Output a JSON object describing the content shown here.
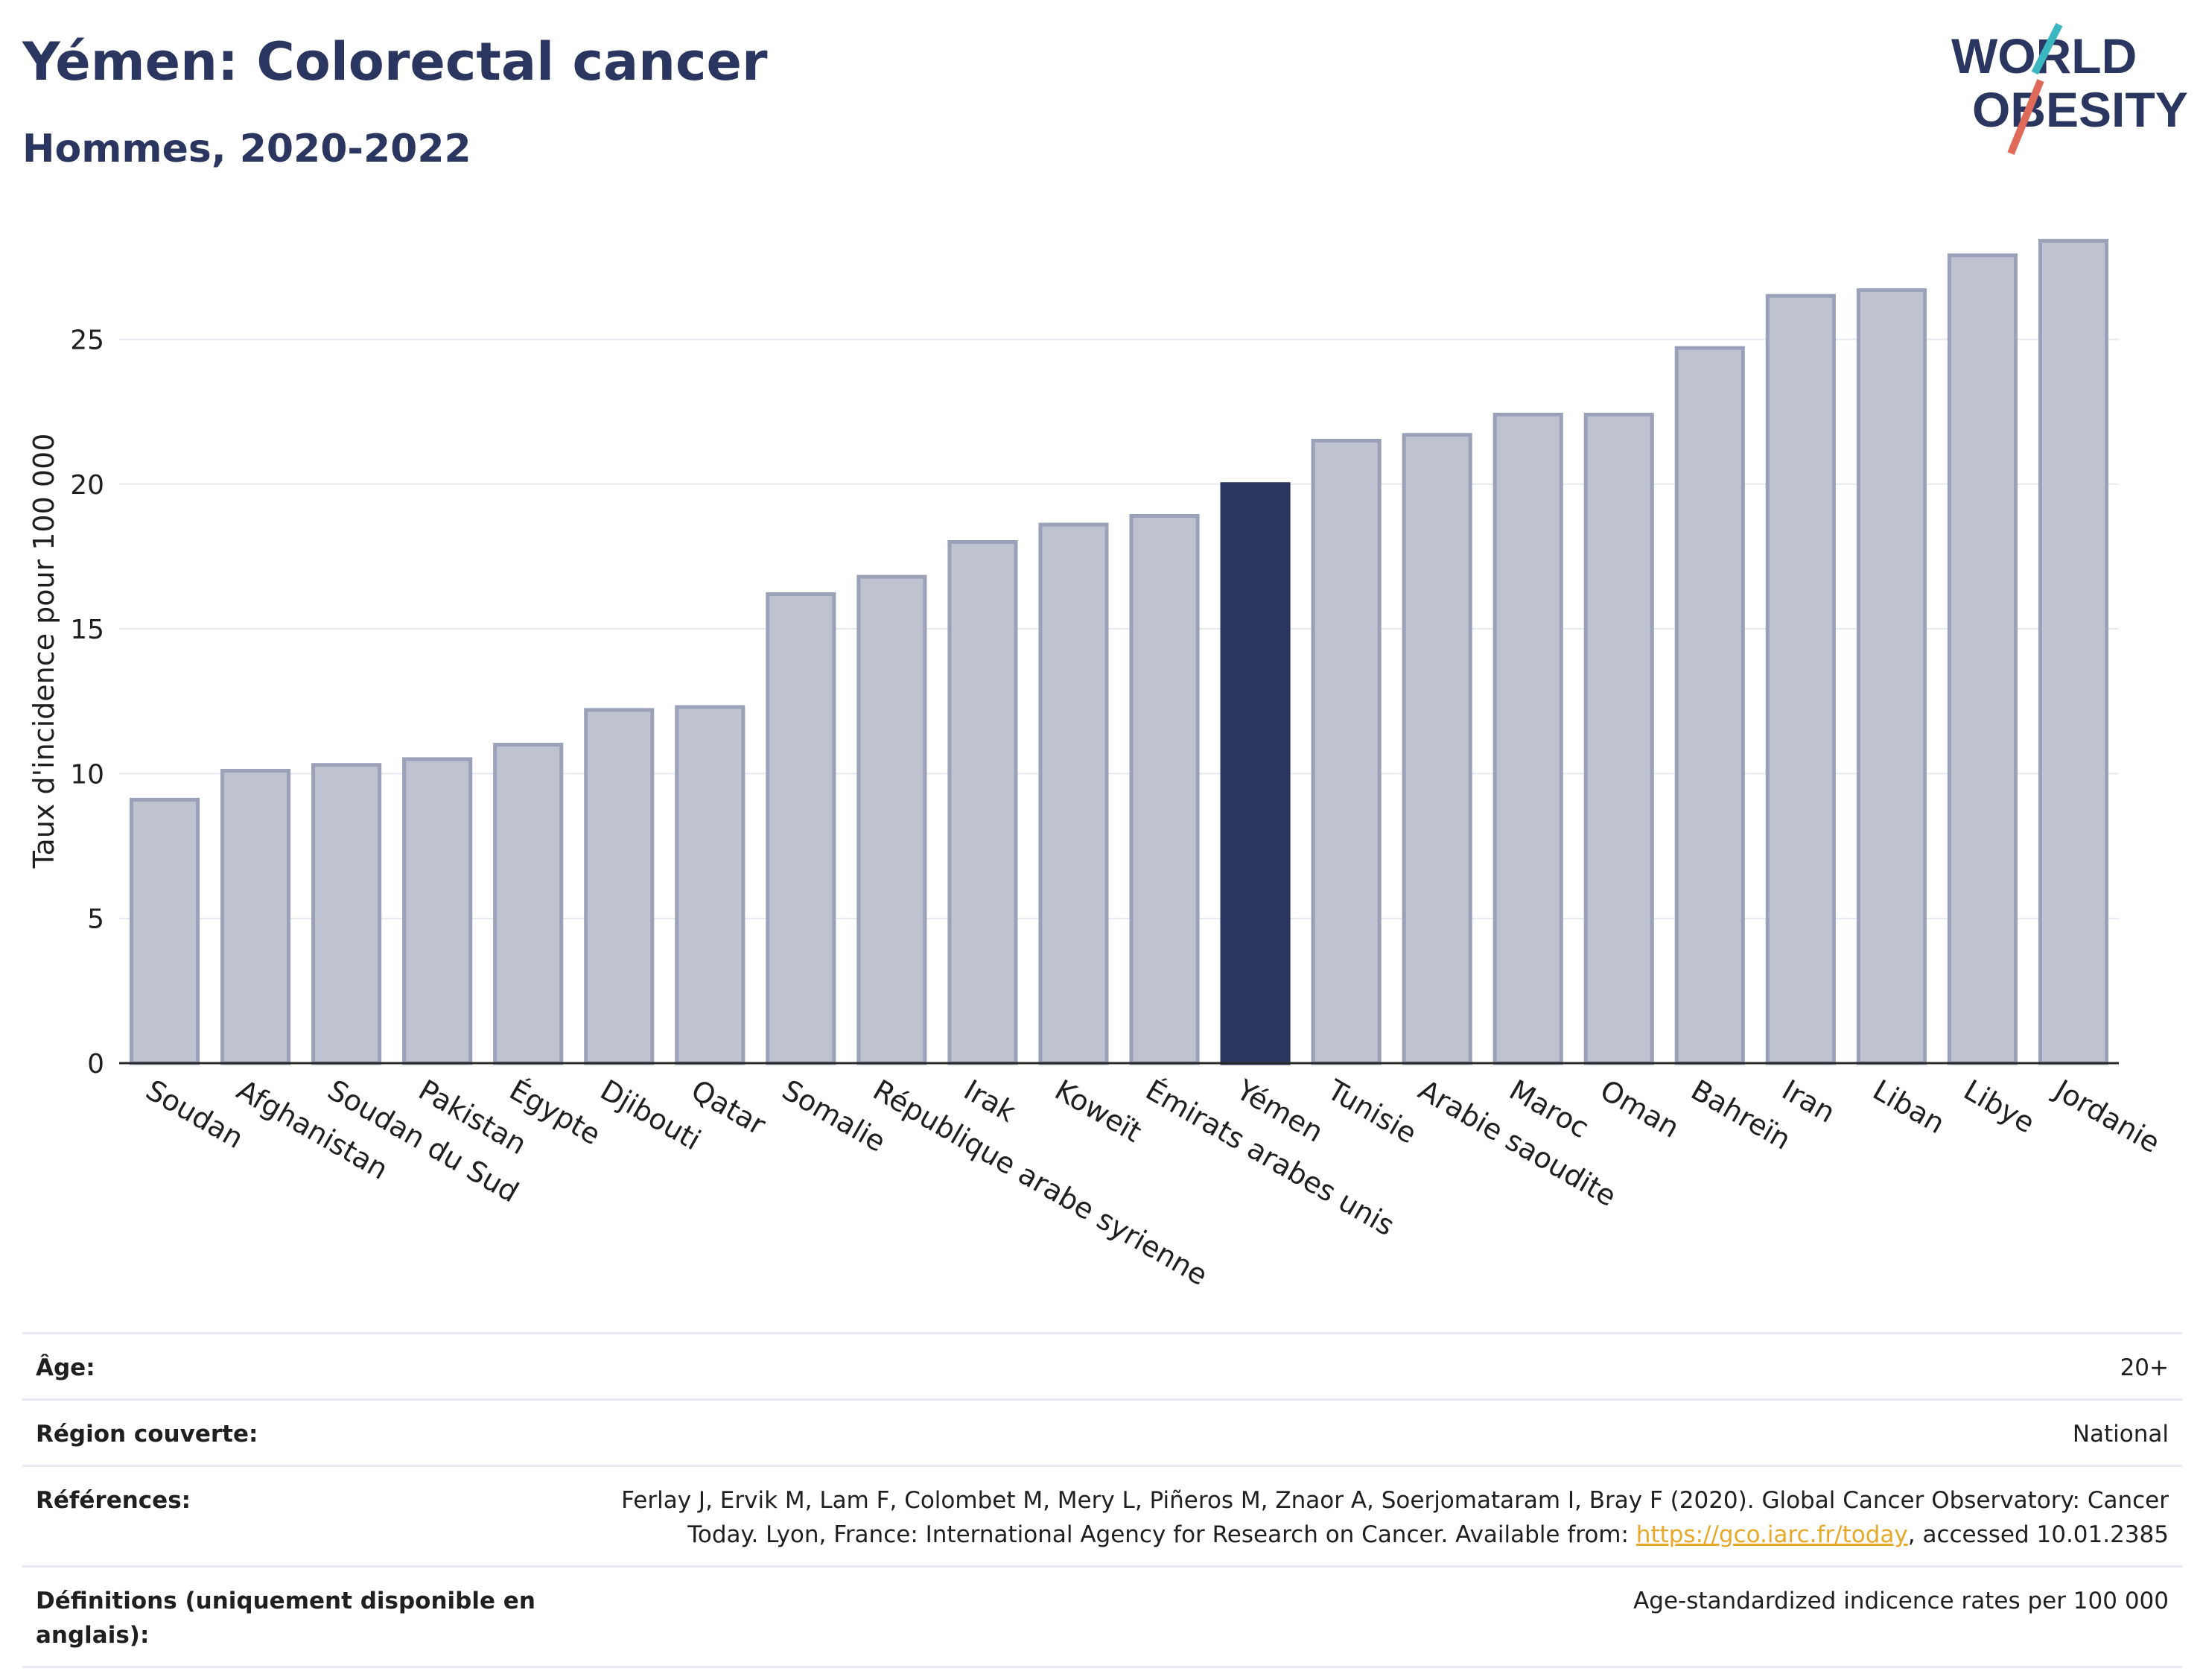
{
  "header": {
    "title": "Yémen: Colorectal cancer",
    "subtitle": "Hommes, 2020-2022"
  },
  "logo": {
    "line1": "WORLD",
    "line2": "OBESITY",
    "slash_colors": [
      "#3bb7c1",
      "#e06a5a"
    ],
    "text_color": "#2a3560"
  },
  "chart_data": {
    "type": "bar",
    "ylabel": "Taux d'incidence pour 100 000",
    "ylim": [
      0,
      29
    ],
    "yticks": [
      0,
      5,
      10,
      15,
      20,
      25
    ],
    "grid": true,
    "highlight": "Yémen",
    "colors": {
      "default": "#bfc3d0",
      "default_border": "#9aa1b8",
      "highlight": "#2a3560"
    },
    "categories": [
      "Soudan",
      "Afghanistan",
      "Soudan du Sud",
      "Pakistan",
      "Égypte",
      "Djibouti",
      "Qatar",
      "Somalie",
      "République arabe syrienne",
      "Irak",
      "Koweït",
      "Émirats arabes unis",
      "Yémen",
      "Tunisie",
      "Arabie saoudite",
      "Maroc",
      "Oman",
      "Bahreïn",
      "Iran",
      "Liban",
      "Libye",
      "Jordanie"
    ],
    "values": [
      9.1,
      10.1,
      10.3,
      10.5,
      11.0,
      12.2,
      12.3,
      16.2,
      16.8,
      18.0,
      18.6,
      18.9,
      20.0,
      21.5,
      21.7,
      22.4,
      22.4,
      24.7,
      26.5,
      26.7,
      27.9,
      28.4
    ]
  },
  "meta": {
    "age_label": "Âge:",
    "age_value": "20+",
    "region_label": "Région couverte:",
    "region_value": "National",
    "references_label": "Références:",
    "references_text_1": "Ferlay J, Ervik M, Lam F, Colombet M, Mery L, Piñeros M, Znaor A, Soerjomataram I, Bray F (2020). Global Cancer Observatory: Cancer",
    "references_text_2": "Today. Lyon, France: International Agency for Research on Cancer. Available from: ",
    "references_link": "https://gco.iarc.fr/today",
    "references_text_3": ", accessed 10.01.2385",
    "definitions_label": "Définitions (uniquement disponible en anglais):",
    "definitions_value": "Age-standardized indicence rates per 100 000"
  }
}
